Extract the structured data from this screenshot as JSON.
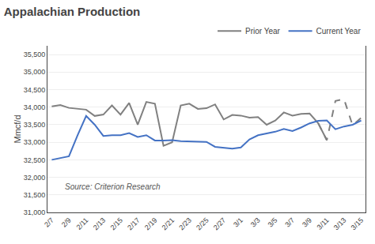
{
  "chart_data": {
    "type": "line",
    "title": "Appalachian Production",
    "y_label": "Mmcf/d",
    "annotations": [
      "Source: Criterion Research"
    ],
    "categories": [
      "2/7",
      null,
      "2/9",
      null,
      "2/11",
      null,
      "2/13",
      null,
      "2/15",
      null,
      "2/17",
      null,
      "2/19",
      null,
      "2/21",
      null,
      "2/23",
      null,
      "2/25",
      null,
      "2/27",
      null,
      "3/1",
      null,
      "3/3",
      null,
      "3/5",
      null,
      "3/7",
      null,
      "3/9",
      null,
      "3/11",
      null,
      "3/13",
      null,
      "3/15"
    ],
    "series": [
      {
        "name": "Prior Year",
        "color": "#808080",
        "line_style": "solid",
        "values": [
          34020,
          34060,
          33980,
          33960,
          33930,
          33750,
          33790,
          34050,
          33790,
          34120,
          33500,
          34150,
          34100,
          32900,
          33000,
          34050,
          34100,
          33950,
          33970,
          34080,
          33650,
          33780,
          33760,
          33700,
          33720,
          33500,
          33620,
          33850,
          33760,
          33810,
          33820,
          33540,
          33060,
          null,
          null,
          null,
          null
        ]
      },
      {
        "color": "#808080",
        "line_style": "dashed",
        "values": [
          null,
          null,
          null,
          null,
          null,
          null,
          null,
          null,
          null,
          null,
          null,
          null,
          null,
          null,
          null,
          null,
          null,
          null,
          null,
          null,
          null,
          null,
          null,
          null,
          null,
          null,
          null,
          null,
          null,
          null,
          null,
          33540,
          33060,
          34180,
          34230,
          33480,
          33700
        ]
      },
      {
        "name": "Current Year",
        "color": "#4472C4",
        "line_style": "solid",
        "values": [
          32500,
          32550,
          32600,
          33200,
          33750,
          33500,
          33180,
          33200,
          33200,
          33260,
          33150,
          33200,
          33050,
          33050,
          33060,
          33030,
          33020,
          33010,
          33010,
          32870,
          32850,
          32820,
          32850,
          33080,
          33200,
          33250,
          33300,
          33380,
          33320,
          33420,
          33540,
          33610,
          33620,
          33370,
          33450,
          33500,
          33620
        ]
      }
    ],
    "ylim": [
      31000,
      35750
    ],
    "yticks": [
      {
        "value": 31000,
        "label": "31,000"
      },
      {
        "value": 31500,
        "label": "31,500"
      },
      {
        "value": 32000,
        "label": "32,000"
      },
      {
        "value": 32500,
        "label": "32,500"
      },
      {
        "value": 33000,
        "label": "33,000"
      },
      {
        "value": 33500,
        "label": "33,500"
      },
      {
        "value": 34000,
        "label": "34,000"
      },
      {
        "value": 34500,
        "label": "34,500"
      },
      {
        "value": 35000,
        "label": "35,000"
      },
      {
        "value": 35500,
        "label": "35,500"
      }
    ],
    "grid": true,
    "legend": "upper right"
  }
}
